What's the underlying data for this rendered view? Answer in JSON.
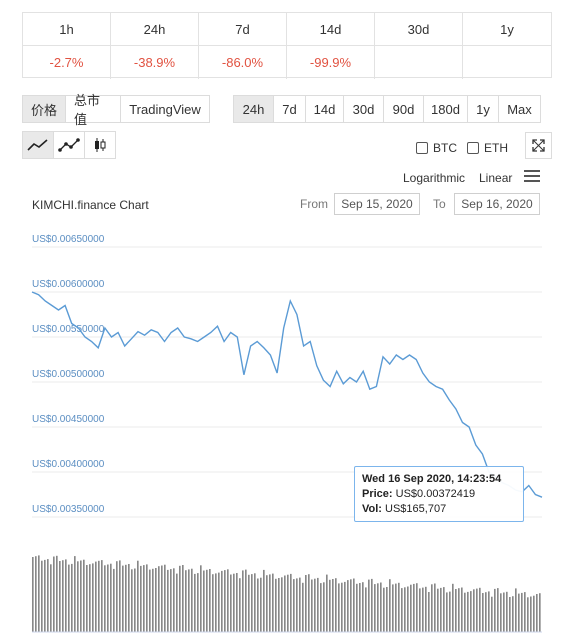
{
  "change_table": {
    "periods": [
      "1h",
      "24h",
      "7d",
      "14d",
      "30d",
      "1y"
    ],
    "values": [
      "-2.7%",
      "-38.9%",
      "-86.0%",
      "-99.9%",
      "",
      ""
    ]
  },
  "view_tabs": [
    "价格",
    "总市值",
    "TradingView"
  ],
  "range_tabs": [
    "24h",
    "7d",
    "14d",
    "30d",
    "90d",
    "180d",
    "1y",
    "Max"
  ],
  "compare": {
    "btc": "BTC",
    "eth": "ETH"
  },
  "scale": {
    "log": "Logarithmic",
    "linear": "Linear"
  },
  "chart": {
    "title": "KIMCHI.finance Chart",
    "from_label": "From",
    "from_date": "Sep 15, 2020",
    "to_label": "To",
    "to_date": "Sep 16, 2020"
  },
  "tooltip": {
    "date": "Wed 16 Sep 2020, 14:23:54",
    "price_label": "Price:",
    "price": "US$0.00372419",
    "vol_label": "Vol:",
    "vol": "US$165,707"
  },
  "colors": {
    "line": "#5b9bd5",
    "negative": "#e15241",
    "volume": "#888888"
  },
  "chart_data": {
    "type": "line",
    "y_tick_labels": [
      "US$0.00650000",
      "US$0.00600000",
      "US$0.00550000",
      "US$0.00500000",
      "US$0.00450000",
      "US$0.00400000",
      "US$0.00350000"
    ],
    "ylim": [
      0.0035,
      0.0065
    ],
    "grid": true,
    "series": [
      {
        "values": [
          0.006,
          0.00597,
          0.0059,
          0.00585,
          0.0058,
          0.00585,
          0.00565,
          0.0056,
          0.0055,
          0.00545,
          0.00538,
          0.0056,
          0.0055,
          0.00555,
          0.0054,
          0.00548,
          0.00556,
          0.00552,
          0.00558,
          0.00555,
          0.00545,
          0.00555,
          0.0056,
          0.0055,
          0.00548,
          0.00545,
          0.0055,
          0.00555,
          0.00562,
          0.00545,
          0.00555,
          0.0055,
          0.00508,
          0.0054,
          0.00545,
          0.00538,
          0.0053,
          0.0051,
          0.0056,
          0.0059,
          0.00575,
          0.0054,
          0.00545,
          0.00518,
          0.00502,
          0.00495,
          0.00512,
          0.00498,
          0.00505,
          0.005,
          0.00512,
          0.00492,
          0.00495,
          0.00528,
          0.0052,
          0.0053,
          0.00525,
          0.0053,
          0.00525,
          0.0051,
          0.005,
          0.00495,
          0.00492,
          0.0048,
          0.0047,
          0.00455,
          0.0045,
          0.0043,
          0.0042,
          0.004,
          0.00395,
          0.00388,
          0.00385,
          0.0038,
          0.00378,
          0.00385,
          0.00375,
          0.00372
        ]
      }
    ]
  }
}
